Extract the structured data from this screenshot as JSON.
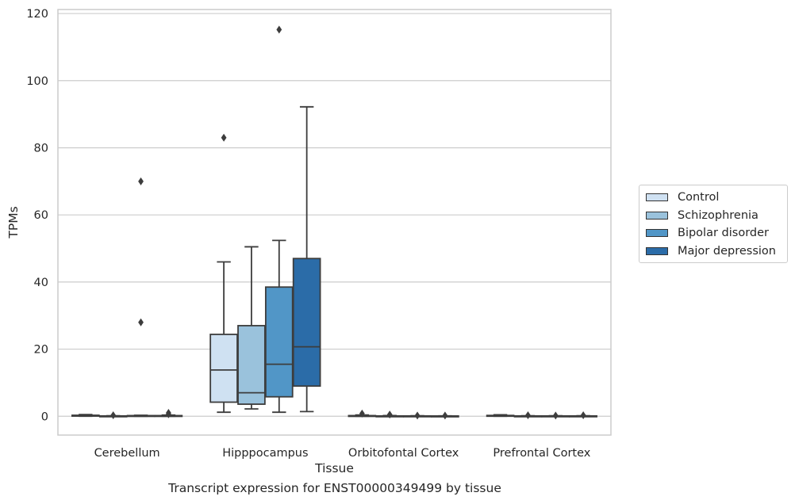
{
  "caption": "Transcript expression for ENST00000349499 by tissue",
  "chart_data": {
    "type": "box",
    "title": "",
    "xlabel": "Tissue",
    "ylabel": "TPMs",
    "ylim": [
      -5.6,
      121.2
    ],
    "yticks": [
      0,
      20,
      40,
      60,
      80,
      100,
      120
    ],
    "grid": "horizontal",
    "legend_position": "right",
    "categories": [
      "Cerebellum",
      "Hipppocampus",
      "Orbitofontal Cortex",
      "Prefrontal Cortex"
    ],
    "series": [
      {
        "name": "Control",
        "color": "#cfe1f2",
        "boxes": [
          {
            "whislo": 0,
            "q1": 0.05,
            "med": 0.15,
            "q3": 0.3,
            "whishi": 0.5,
            "fliers": []
          },
          {
            "whislo": 1.2,
            "q1": 4.2,
            "med": 13.8,
            "q3": 24.4,
            "whishi": 46.0,
            "fliers": [
              83.0
            ]
          },
          {
            "whislo": 0,
            "q1": 0.05,
            "med": 0.1,
            "q3": 0.2,
            "whishi": 0.4,
            "fliers": [
              0.8
            ]
          },
          {
            "whislo": 0,
            "q1": 0.05,
            "med": 0.1,
            "q3": 0.25,
            "whishi": 0.45,
            "fliers": []
          }
        ]
      },
      {
        "name": "Schizophrenia",
        "color": "#9ac2dc",
        "boxes": [
          {
            "whislo": 0,
            "q1": 0.02,
            "med": 0.05,
            "q3": 0.1,
            "whishi": 0.15,
            "fliers": [
              0.3
            ]
          },
          {
            "whislo": 2.2,
            "q1": 3.6,
            "med": 7.0,
            "q3": 27.0,
            "whishi": 50.5,
            "fliers": []
          },
          {
            "whislo": 0,
            "q1": 0.02,
            "med": 0.05,
            "q3": 0.1,
            "whishi": 0.2,
            "fliers": [
              0.5
            ]
          },
          {
            "whislo": 0,
            "q1": 0.02,
            "med": 0.05,
            "q3": 0.1,
            "whishi": 0.15,
            "fliers": [
              0.3
            ]
          }
        ]
      },
      {
        "name": "Bipolar disorder",
        "color": "#5196c7",
        "boxes": [
          {
            "whislo": 0,
            "q1": 0.05,
            "med": 0.1,
            "q3": 0.2,
            "whishi": 0.3,
            "fliers": [
              28.0,
              70.0
            ]
          },
          {
            "whislo": 1.2,
            "q1": 5.8,
            "med": 15.5,
            "q3": 38.5,
            "whishi": 52.4,
            "fliers": [
              115.2
            ]
          },
          {
            "whislo": 0,
            "q1": 0.02,
            "med": 0.05,
            "q3": 0.1,
            "whishi": 0.15,
            "fliers": [
              0.2
            ]
          },
          {
            "whislo": 0,
            "q1": 0.02,
            "med": 0.05,
            "q3": 0.1,
            "whishi": 0.15,
            "fliers": [
              0.2
            ]
          }
        ]
      },
      {
        "name": "Major depression",
        "color": "#2b6ca8",
        "boxes": [
          {
            "whislo": 0,
            "q1": 0.05,
            "med": 0.1,
            "q3": 0.2,
            "whishi": 0.35,
            "fliers": [
              0.6,
              1.0
            ]
          },
          {
            "whislo": 1.4,
            "q1": 9.0,
            "med": 20.7,
            "q3": 47.0,
            "whishi": 92.2,
            "fliers": []
          },
          {
            "whislo": 0,
            "q1": 0.02,
            "med": 0.05,
            "q3": 0.08,
            "whishi": 0.12,
            "fliers": [
              0.2
            ]
          },
          {
            "whislo": 0,
            "q1": 0.02,
            "med": 0.05,
            "q3": 0.1,
            "whishi": 0.15,
            "fliers": [
              0.3
            ]
          }
        ]
      }
    ]
  }
}
